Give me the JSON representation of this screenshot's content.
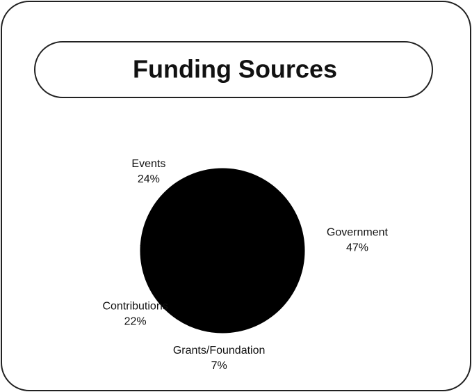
{
  "chart_data": {
    "type": "pie",
    "title": "Funding Sources",
    "categories": [
      "Government",
      "Grants/Foundation",
      "Contributions",
      "Events"
    ],
    "values": [
      47,
      7,
      22,
      24
    ],
    "value_labels": [
      "47%",
      "7%",
      "22%",
      "24%"
    ],
    "color": "#000000"
  }
}
